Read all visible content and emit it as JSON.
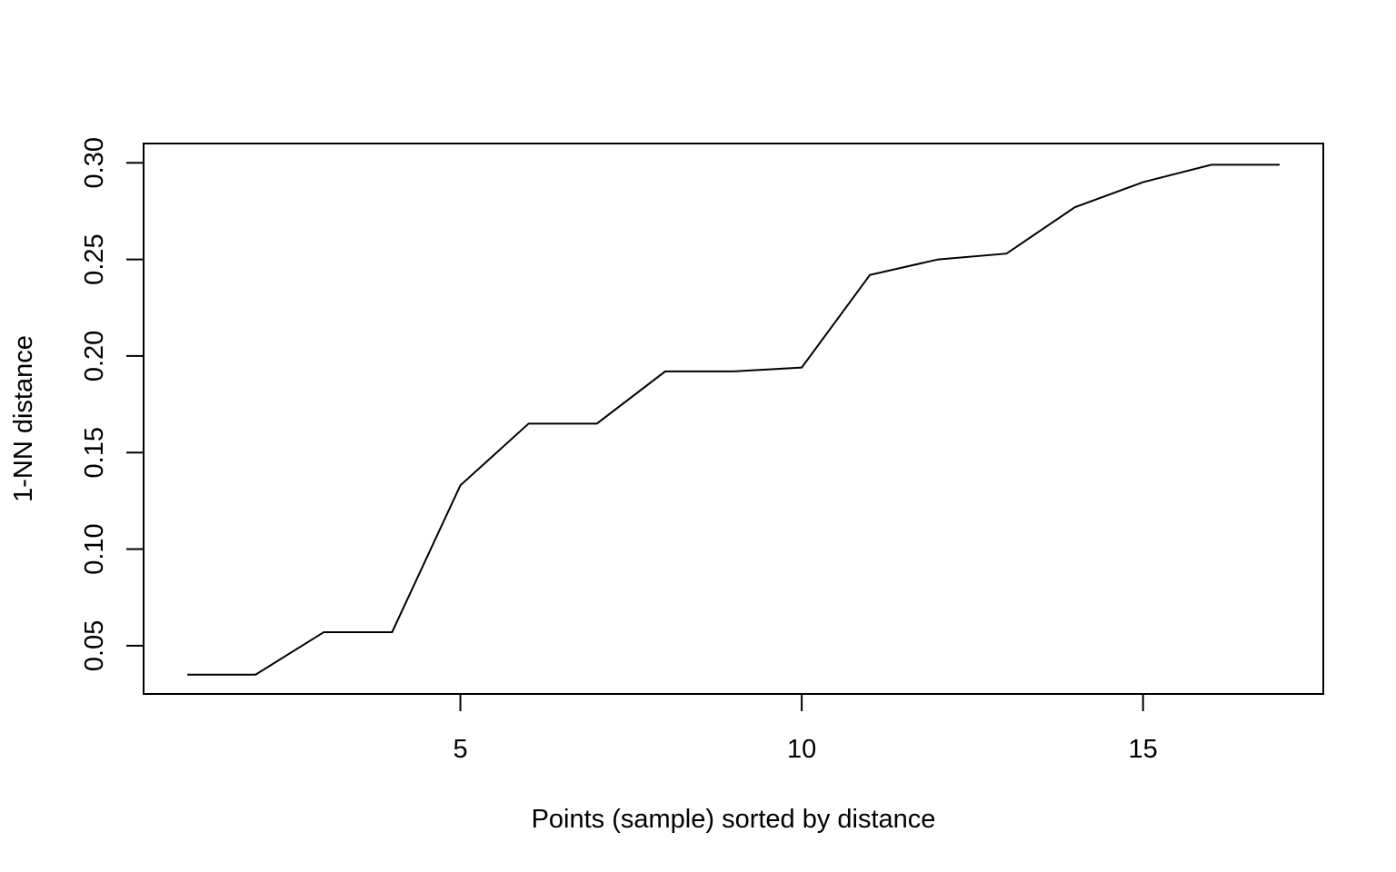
{
  "chart_data": {
    "type": "line",
    "title": "",
    "xlabel": "Points (sample) sorted by distance",
    "ylabel": "1-NN distance",
    "xlim": [
      0.36,
      17.64
    ],
    "ylim": [
      0.025,
      0.31
    ],
    "x_ticks": [
      {
        "value": 5,
        "label": "5"
      },
      {
        "value": 10,
        "label": "10"
      },
      {
        "value": 15,
        "label": "15"
      }
    ],
    "y_ticks": [
      {
        "value": 0.05,
        "label": "0.05"
      },
      {
        "value": 0.1,
        "label": "0.10"
      },
      {
        "value": 0.15,
        "label": "0.15"
      },
      {
        "value": 0.2,
        "label": "0.20"
      },
      {
        "value": 0.25,
        "label": "0.25"
      },
      {
        "value": 0.3,
        "label": "0.30"
      }
    ],
    "grid": false,
    "legend": "none",
    "line_color": "#000000",
    "series": [
      {
        "x": [
          1,
          2,
          3,
          4,
          5,
          6,
          7,
          8,
          9,
          10,
          11,
          12,
          13,
          14,
          15,
          16,
          17
        ],
        "y": [
          0.035,
          0.035,
          0.057,
          0.057,
          0.133,
          0.165,
          0.165,
          0.192,
          0.192,
          0.194,
          0.242,
          0.25,
          0.253,
          0.277,
          0.29,
          0.299,
          0.299
        ]
      }
    ]
  }
}
